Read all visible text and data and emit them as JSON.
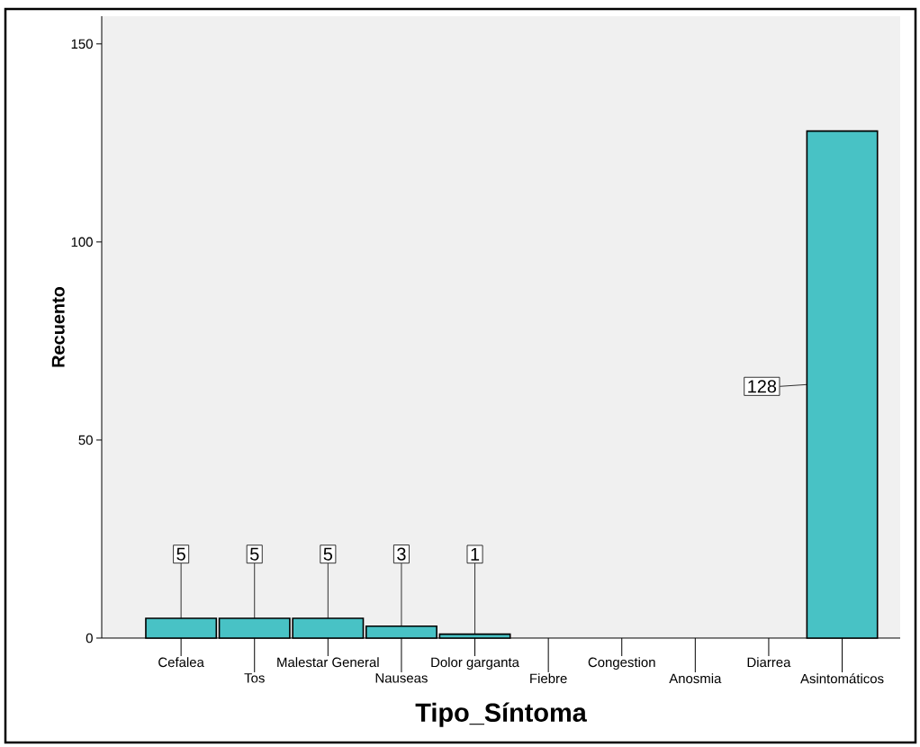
{
  "chart_data": {
    "type": "bar",
    "xlabel": "Tipo_Síntoma",
    "ylabel": "Recuento",
    "categories": [
      "Cefalea",
      "Tos",
      "Malestar General",
      "Nauseas",
      "Dolor garganta",
      "Fiebre",
      "Congestion",
      "Anosmia",
      "Diarrea",
      "Asintomáticos"
    ],
    "values": [
      5,
      5,
      5,
      3,
      1,
      0,
      0,
      0,
      0,
      128
    ],
    "value_labels": [
      "5",
      "5",
      "5",
      "3",
      "1",
      null,
      null,
      null,
      null,
      "128"
    ],
    "color": "#48c2c5",
    "ylim": [
      0,
      157
    ],
    "yticks": [
      0,
      50,
      100,
      150
    ]
  }
}
